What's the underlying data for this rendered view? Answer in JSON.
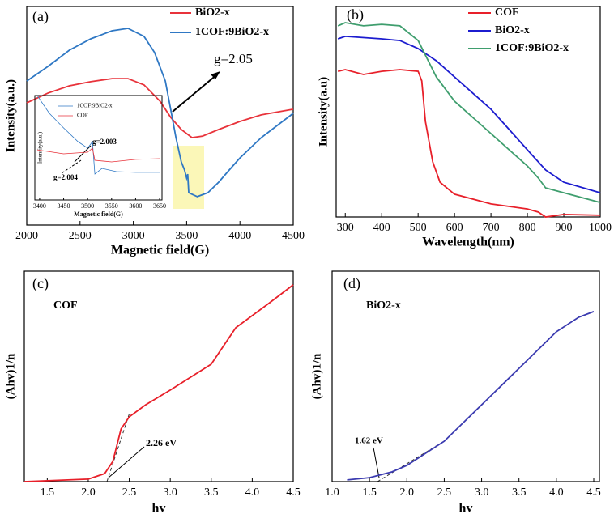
{
  "chart_data": [
    {
      "type": "line",
      "panel": "(a)",
      "xlabel": "Magnetic field(G)",
      "ylabel": "Intensity(a.u.)",
      "xlim": [
        2000,
        4500
      ],
      "xticks": [
        2000,
        2500,
        3000,
        3500,
        4000,
        4500
      ],
      "ylim": [
        0,
        100
      ],
      "annotations": [
        "g=2.05"
      ],
      "series": [
        {
          "name": "BiO2-x",
          "color": "#e8333b",
          "x": [
            2000,
            2200,
            2400,
            2600,
            2800,
            2950,
            3100,
            3250,
            3350,
            3450,
            3550,
            3650,
            3800,
            4000,
            4200,
            4500
          ],
          "values": [
            55.9,
            60.4,
            63.7,
            65.6,
            67,
            67,
            64.1,
            56.7,
            49.3,
            43.7,
            40,
            40.7,
            43.7,
            47.4,
            50.4,
            53
          ]
        },
        {
          "name": "1COF:9BiO2-x",
          "color": "#2f78c4",
          "x": [
            2000,
            2200,
            2400,
            2600,
            2800,
            2950,
            3100,
            3200,
            3300,
            3350,
            3400,
            3450,
            3480,
            3500,
            3510,
            3520,
            3550,
            3600,
            3700,
            3800,
            3900,
            4000,
            4200,
            4400,
            4500
          ],
          "values": [
            65.9,
            72.6,
            80,
            85.2,
            88.9,
            90,
            86.3,
            78.9,
            65.9,
            53,
            40,
            28.9,
            25.2,
            21.5,
            23.3,
            14.8,
            14.1,
            13,
            14.8,
            19.6,
            25.2,
            30.7,
            40,
            47.4,
            51.1
          ]
        }
      ]
    },
    {
      "type": "line",
      "xlabel": "Magnetic field(G)",
      "ylabel": "Intensity(a.u.)",
      "xlim": [
        3390,
        3655
      ],
      "xticks": [
        3400,
        3450,
        3500,
        3550,
        3600,
        3650
      ],
      "ylim": [
        0,
        100
      ],
      "annotations": [
        "g=2.003",
        "g=2.004"
      ],
      "series": [
        {
          "name": "1COF:9BiO2-x",
          "color": "#2f78c4",
          "x": [
            3395,
            3420,
            3450,
            3480,
            3500,
            3510,
            3515,
            3530,
            3560,
            3600,
            3650
          ],
          "values": [
            100,
            83,
            69,
            55.8,
            49.6,
            55.8,
            24.8,
            30.2,
            27.1,
            26.4,
            26.4
          ]
        },
        {
          "name": "COF",
          "color": "#e8333b",
          "x": [
            3395,
            3450,
            3500,
            3510,
            3515,
            3550,
            3600,
            3650
          ],
          "values": [
            48,
            44.2,
            45.7,
            49.6,
            38,
            36.4,
            38.8,
            39.5
          ]
        }
      ]
    },
    {
      "type": "line",
      "panel": "(b)",
      "xlabel": "Wavelength(nm)",
      "ylabel": "Intensity(a.u)",
      "xlim": [
        275,
        1000
      ],
      "xticks": [
        300,
        400,
        500,
        600,
        700,
        800,
        900,
        1000
      ],
      "ylim": [
        0,
        100
      ],
      "series": [
        {
          "name": "COF",
          "color": "#e8202a",
          "x": [
            280,
            300,
            350,
            400,
            450,
            500,
            510,
            520,
            540,
            560,
            600,
            700,
            800,
            830,
            850,
            900,
            1000
          ],
          "values": [
            69.2,
            70,
            67.7,
            69.2,
            70,
            69.2,
            64.6,
            45.4,
            26.2,
            16.5,
            10.8,
            6.2,
            3.8,
            2.3,
            0,
            1.2,
            0.8
          ]
        },
        {
          "name": "BiO2-x",
          "color": "#1c1ccf",
          "x": [
            280,
            300,
            400,
            450,
            500,
            550,
            600,
            700,
            800,
            850,
            900,
            1000
          ],
          "values": [
            84.6,
            85.8,
            84.6,
            83.8,
            80,
            74.2,
            66.5,
            51.2,
            31.9,
            22.3,
            16.5,
            11.5
          ]
        },
        {
          "name": "1COF:9BiO2-x",
          "color": "#3f9e6e",
          "x": [
            280,
            300,
            350,
            400,
            450,
            500,
            550,
            600,
            700,
            800,
            830,
            850,
            900,
            1000
          ],
          "values": [
            90.8,
            92.3,
            90.8,
            91.5,
            90.8,
            83.8,
            66.5,
            55,
            39.6,
            24.2,
            18.5,
            13.8,
            11.5,
            6.9
          ]
        }
      ]
    },
    {
      "type": "line",
      "panel": "(c)",
      "xlabel": "hv",
      "ylabel": "(Ahv)1/n",
      "label": "COF",
      "annotations": [
        "2.26 eV"
      ],
      "xlim": [
        1.22,
        4.5
      ],
      "xticks": [
        1.5,
        {
          "value": 2,
          "label": "2.0"
        },
        2.5,
        {
          "value": 3,
          "label": "3.0"
        },
        3.5,
        {
          "value": 4,
          "label": "4.0"
        },
        4.5
      ],
      "ylim": [
        0,
        100
      ],
      "series": [
        {
          "color": "#e8202a",
          "x": [
            1.22,
            2.0,
            2.2,
            2.3,
            2.4,
            2.5,
            2.7,
            3.0,
            3.5,
            3.8,
            4.2,
            4.5
          ],
          "values": [
            0,
            1.2,
            3.8,
            9.6,
            25,
            30.8,
            36.5,
            43.5,
            55.8,
            73.1,
            84.6,
            93.5
          ]
        }
      ]
    },
    {
      "type": "line",
      "panel": "(d)",
      "xlabel": "hv",
      "ylabel": "(Ahv)1/n",
      "label": "BiO2-x",
      "annotations": [
        "1.62 eV"
      ],
      "xlim": [
        1,
        4.576
      ],
      "xticks": [
        {
          "value": 1,
          "label": "1.0"
        },
        1.5,
        {
          "value": 2,
          "label": "2.0"
        },
        2.5,
        {
          "value": 3,
          "label": "3.0"
        },
        3.5,
        {
          "value": 4,
          "label": "4.0"
        },
        4.5
      ],
      "ylim": [
        0,
        100
      ],
      "series": [
        {
          "color": "#3b3bb0",
          "x": [
            1.2,
            1.5,
            1.8,
            2.0,
            2.5,
            3.0,
            3.5,
            4.0,
            4.3,
            4.5
          ],
          "values": [
            0.8,
            1.9,
            4.6,
            7.7,
            19.2,
            36.5,
            53.8,
            71.2,
            78.1,
            80.8
          ]
        }
      ]
    }
  ]
}
